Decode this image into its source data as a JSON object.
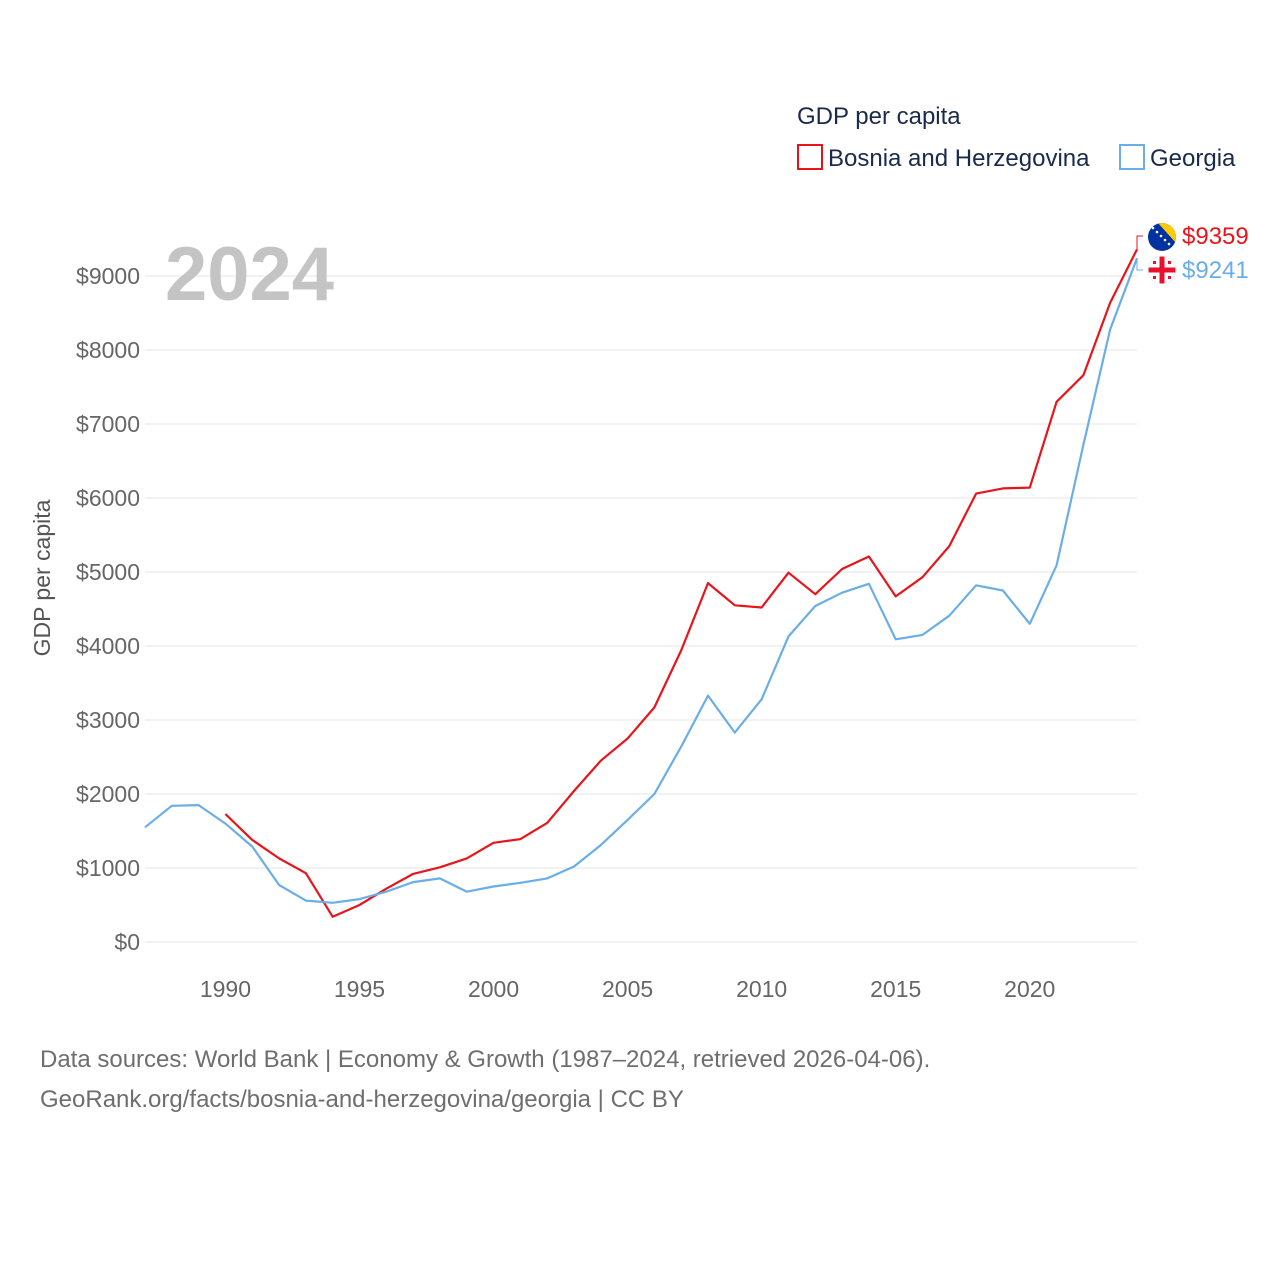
{
  "chart_data": {
    "type": "line",
    "title": "GDP per capita",
    "ylabel": "GDP per capita",
    "xlabel": "",
    "current_year": "2024",
    "xlim": [
      1987,
      2024
    ],
    "ylim": [
      0,
      9500
    ],
    "x_ticks": [
      1990,
      1995,
      2000,
      2005,
      2010,
      2015,
      2020
    ],
    "y_ticks": [
      {
        "value": 0,
        "label": "$0"
      },
      {
        "value": 1000,
        "label": "$1000"
      },
      {
        "value": 2000,
        "label": "$2000"
      },
      {
        "value": 3000,
        "label": "$3000"
      },
      {
        "value": 4000,
        "label": "$4000"
      },
      {
        "value": 5000,
        "label": "$5000"
      },
      {
        "value": 6000,
        "label": "$6000"
      },
      {
        "value": 7000,
        "label": "$7000"
      },
      {
        "value": 8000,
        "label": "$8000"
      },
      {
        "value": 9000,
        "label": "$9000"
      }
    ],
    "legend_position": "top-right",
    "series": [
      {
        "name": "Bosnia and Herzegovina",
        "color": "#e8141b",
        "end_label": "$9359",
        "flag": "bosnia-flag-icon",
        "x": [
          1990,
          1991,
          1992,
          1993,
          1994,
          1995,
          1996,
          1997,
          1998,
          1999,
          2000,
          2001,
          2002,
          2003,
          2004,
          2005,
          2006,
          2007,
          2008,
          2009,
          2010,
          2011,
          2012,
          2013,
          2014,
          2015,
          2016,
          2017,
          2018,
          2019,
          2020,
          2021,
          2022,
          2023,
          2024
        ],
        "values": [
          1730,
          1380,
          1130,
          930,
          340,
          500,
          720,
          920,
          1010,
          1130,
          1340,
          1390,
          1610,
          2040,
          2450,
          2750,
          3170,
          3940,
          4850,
          4550,
          4520,
          4990,
          4700,
          5040,
          5210,
          4670,
          4930,
          5350,
          6060,
          6130,
          6140,
          7300,
          7660,
          8640,
          9359
        ]
      },
      {
        "name": "Georgia",
        "color": "#6aaee9",
        "end_label": "$9241",
        "flag": "georgia-flag-icon",
        "x": [
          1987,
          1988,
          1989,
          1990,
          1991,
          1992,
          1993,
          1994,
          1995,
          1996,
          1997,
          1998,
          1999,
          2000,
          2001,
          2002,
          2003,
          2004,
          2005,
          2006,
          2007,
          2008,
          2009,
          2010,
          2011,
          2012,
          2013,
          2014,
          2015,
          2016,
          2017,
          2018,
          2019,
          2020,
          2021,
          2022,
          2023,
          2024
        ],
        "values": [
          1550,
          1840,
          1850,
          1600,
          1290,
          770,
          560,
          530,
          580,
          680,
          810,
          860,
          680,
          750,
          800,
          860,
          1020,
          1310,
          1650,
          2000,
          2640,
          3330,
          2830,
          3280,
          4130,
          4540,
          4720,
          4840,
          4090,
          4150,
          4410,
          4820,
          4750,
          4300,
          5090,
          6720,
          8280,
          9241
        ]
      }
    ]
  },
  "source": {
    "line1": "Data sources: World Bank | Economy & Growth (1987–2024, retrieved 2026-04-06).",
    "line2": "GeoRank.org/facts/bosnia-and-herzegovina/georgia | CC BY"
  }
}
